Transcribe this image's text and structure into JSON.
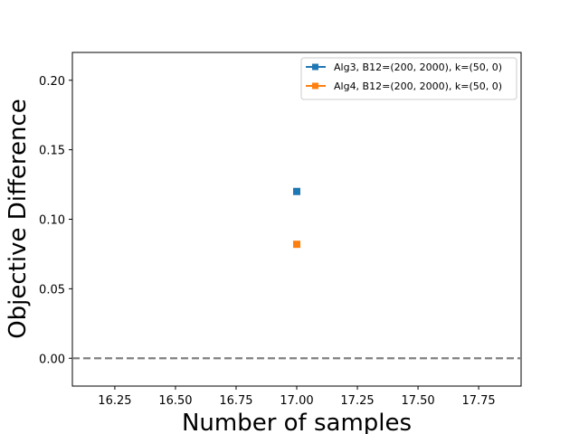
{
  "chart_data": {
    "type": "scatter",
    "xlabel": "Number of samples",
    "ylabel": "Objective Difference",
    "xlim": [
      16.075,
      17.925
    ],
    "ylim": [
      -0.02,
      0.22
    ],
    "x_ticks": [
      16.25,
      16.5,
      16.75,
      17.0,
      17.25,
      17.5,
      17.75
    ],
    "x_tick_labels": [
      "16.25",
      "16.50",
      "16.75",
      "17.00",
      "17.25",
      "17.50",
      "17.75"
    ],
    "y_ticks": [
      0.0,
      0.05,
      0.1,
      0.15,
      0.2
    ],
    "y_tick_labels": [
      "0.00",
      "0.05",
      "0.10",
      "0.15",
      "0.20"
    ],
    "grid": false,
    "legend_position": "top-right",
    "series": [
      {
        "name": "Alg3, B12=(200, 2000), k=(50, 0)",
        "color": "#1f77b4",
        "marker": "square",
        "x": [
          17.0
        ],
        "y": [
          0.12
        ]
      },
      {
        "name": "Alg4, B12=(200, 2000), k=(50, 0)",
        "color": "#ff7f0e",
        "marker": "square",
        "x": [
          17.0
        ],
        "y": [
          0.082
        ]
      }
    ],
    "reference_line": {
      "y": 0.0,
      "style": "dashed",
      "color": "#808080"
    }
  }
}
